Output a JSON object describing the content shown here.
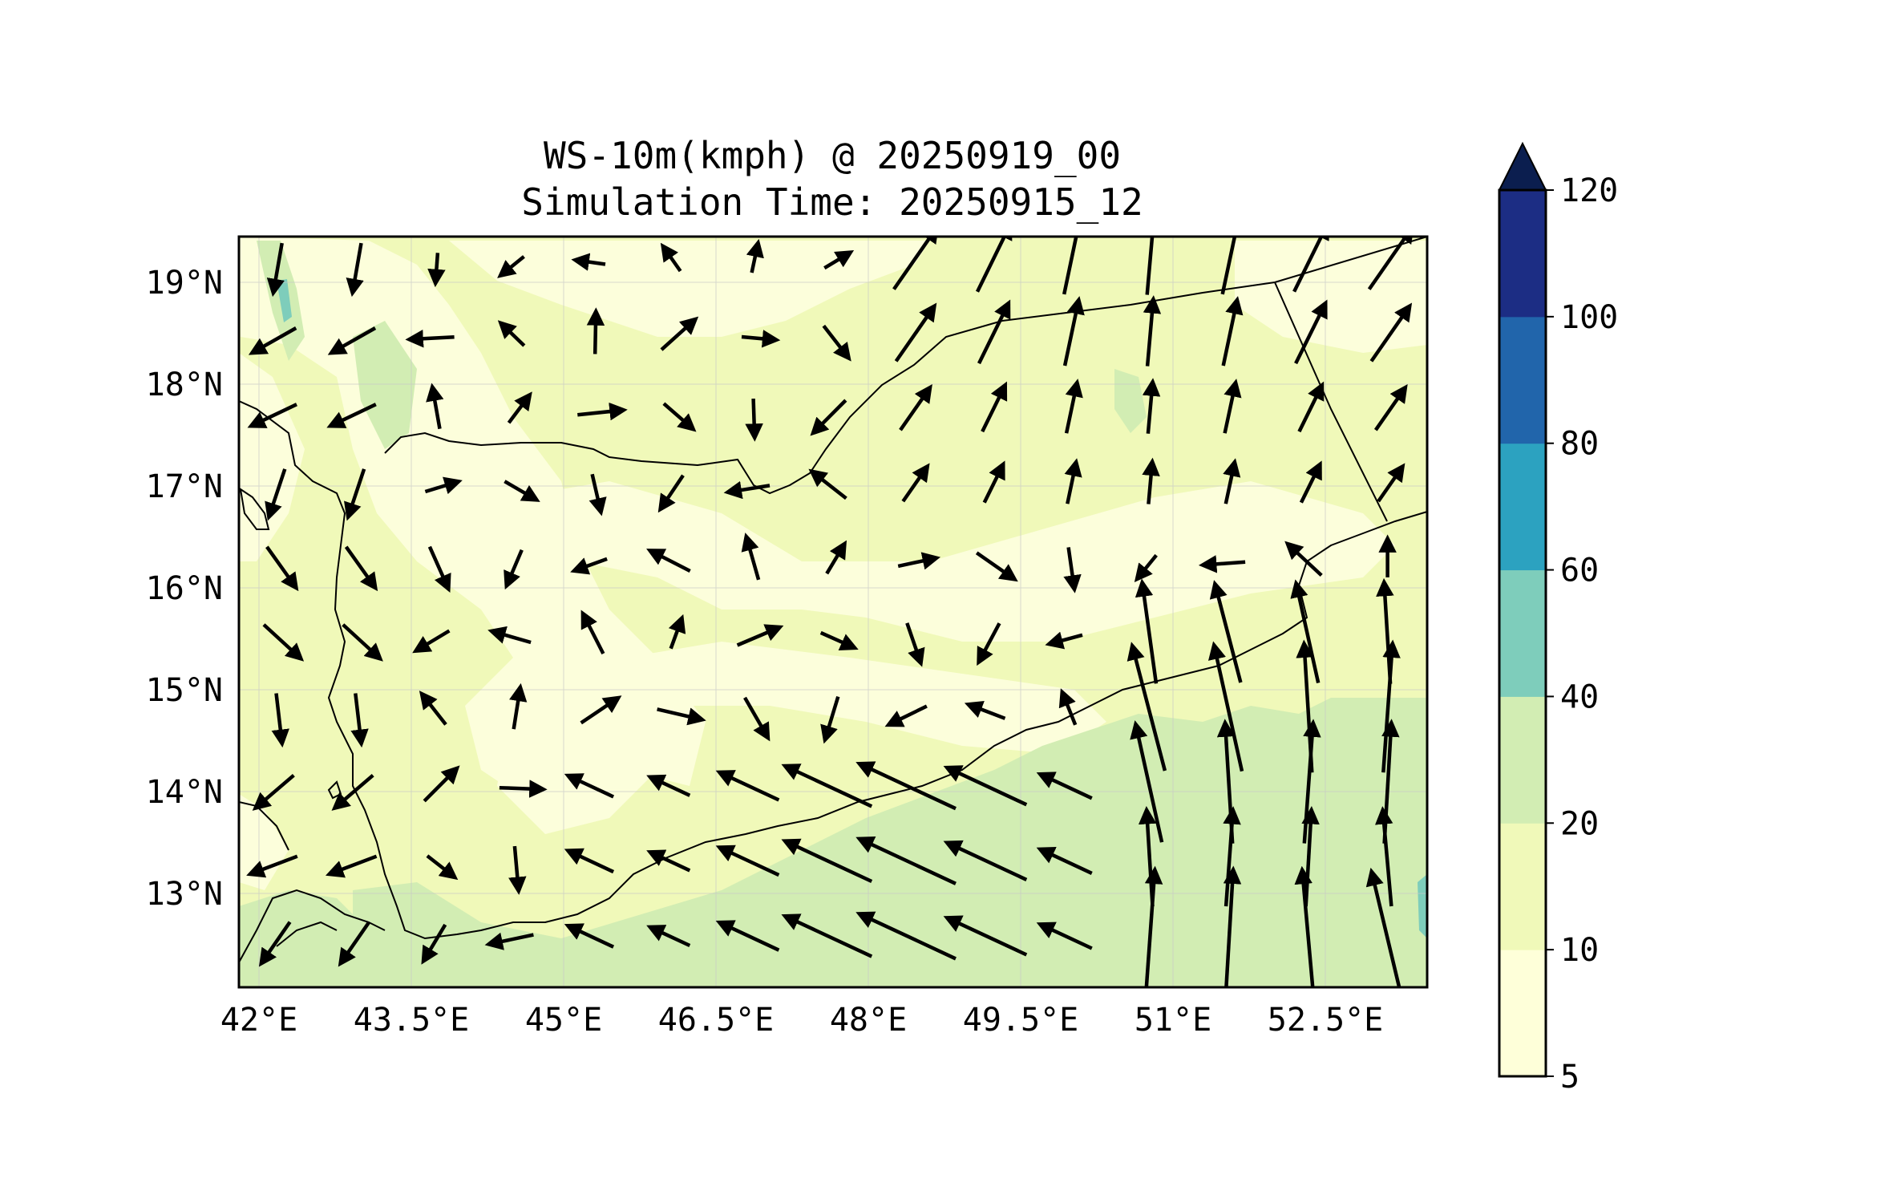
{
  "title": {
    "line1": "WS-10m(kmph) @ 20250919_00",
    "line2": "Simulation Time: 20250915_12"
  },
  "map": {
    "variable": "10 m wind speed",
    "units": "kmph",
    "lon_range": [
      42.0,
      53.8
    ],
    "lat_range": [
      12.1,
      19.45
    ],
    "lon_ticks": [
      "42°E",
      "43.5°E",
      "45°E",
      "46.5°E",
      "48°E",
      "49.5°E",
      "51°E",
      "52.5°E"
    ],
    "lat_ticks": [
      "19°N",
      "18°N",
      "17°N",
      "16°N",
      "15°N",
      "14°N",
      "13°N"
    ],
    "gridlines": true,
    "vectors": "black wind arrows"
  },
  "colorbar": {
    "levels": [
      5,
      10,
      20,
      40,
      60,
      80,
      100,
      120
    ],
    "labels": [
      "5",
      "10",
      "20",
      "40",
      "60",
      "80",
      "100",
      "120"
    ],
    "colors": [
      "#feffd9",
      "#f0f9b9",
      "#d2edb3",
      "#7ecdbb",
      "#2ca2c0",
      "#2165ab",
      "#1c2d84",
      "#0b1e4f"
    ],
    "extend": "max"
  }
}
